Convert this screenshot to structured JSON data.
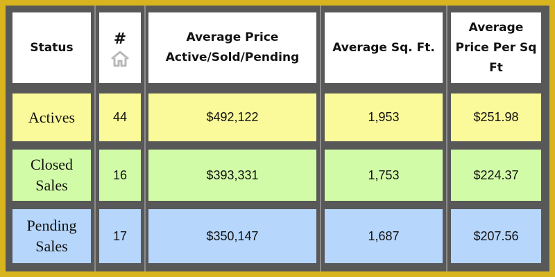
{
  "table": {
    "headers": {
      "status": "Status",
      "count": "#",
      "avg_price": "Average Price Active/Sold/Pending",
      "avg_sqft": "Average Sq. Ft.",
      "price_per_sqft": "Average Price Per Sq Ft"
    },
    "count_icon": "home-icon",
    "rows": [
      {
        "status": "Actives",
        "count": "44",
        "avg_price": "$492,122",
        "avg_sqft": "1,953",
        "price_per_sqft": "$251.98",
        "color": "#fbfa9a"
      },
      {
        "status": "Closed Sales",
        "count": "16",
        "avg_price": "$393,331",
        "avg_sqft": "1,753",
        "price_per_sqft": "$224.37",
        "color": "#d2fba8"
      },
      {
        "status": "Pending Sales",
        "count": "17",
        "avg_price": "$350,147",
        "avg_sqft": "1,687",
        "price_per_sqft": "$207.56",
        "color": "#b6d6fb"
      }
    ]
  },
  "colors": {
    "border": "#d8b41f",
    "grid": "#585858",
    "header_bg": "#ffffff"
  }
}
